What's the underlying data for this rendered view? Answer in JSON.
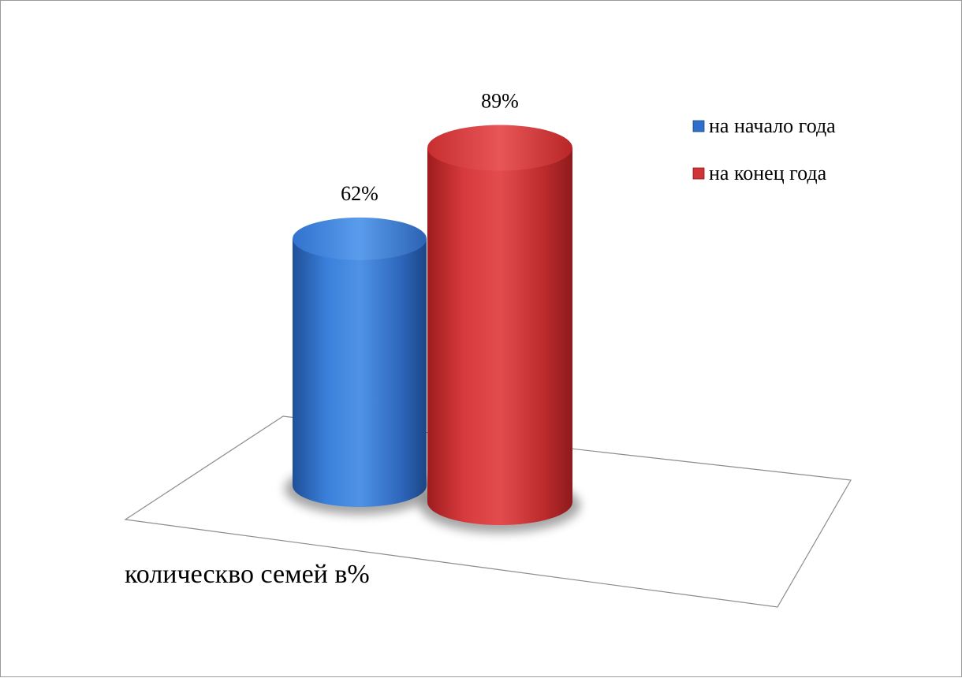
{
  "chart_data": {
    "type": "bar",
    "style": "3d-cylinder",
    "categories": [
      "колическво семей в%"
    ],
    "series": [
      {
        "name": "на начало года",
        "values": [
          62
        ],
        "color": "#2E6FCE"
      },
      {
        "name": "на конец года",
        "values": [
          89
        ],
        "color": "#D03436"
      }
    ],
    "value_labels": [
      "62%",
      "89%"
    ],
    "ylim": [
      0,
      100
    ],
    "grid": false,
    "legend_position": "top-right"
  }
}
